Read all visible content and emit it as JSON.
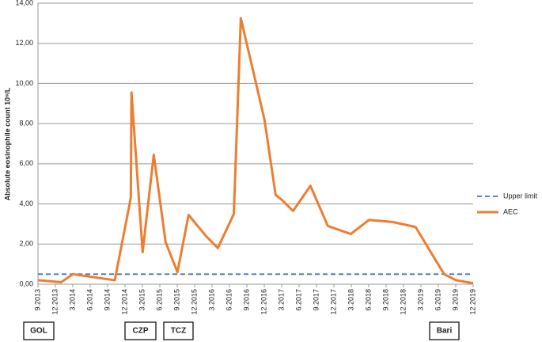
{
  "chart_data": {
    "type": "line",
    "y_label": "Absolute eosinophile count 10⁹/L",
    "ylim": [
      0,
      14
    ],
    "yticks": [
      {
        "value": 0,
        "label": "0,00"
      },
      {
        "value": 2,
        "label": "2,00"
      },
      {
        "value": 4,
        "label": "4,00"
      },
      {
        "value": 6,
        "label": "6,00"
      },
      {
        "value": 8,
        "label": "8,00"
      },
      {
        "value": 10,
        "label": "10,00"
      },
      {
        "value": 12,
        "label": "12,00"
      },
      {
        "value": 14,
        "label": "14,00"
      }
    ],
    "xlim": [
      2013.667,
      2019.917
    ],
    "xticks": [
      {
        "value": 2013.667,
        "label": "9.2013"
      },
      {
        "value": 2013.917,
        "label": "12.2013"
      },
      {
        "value": 2014.167,
        "label": "3.2014"
      },
      {
        "value": 2014.417,
        "label": "6.2014"
      },
      {
        "value": 2014.667,
        "label": "9.2014"
      },
      {
        "value": 2014.917,
        "label": "12.2014"
      },
      {
        "value": 2015.167,
        "label": "3.2015"
      },
      {
        "value": 2015.417,
        "label": "6.2015"
      },
      {
        "value": 2015.667,
        "label": "9.2015"
      },
      {
        "value": 2015.917,
        "label": "12.2015"
      },
      {
        "value": 2016.167,
        "label": "3.2016"
      },
      {
        "value": 2016.417,
        "label": "6.2016"
      },
      {
        "value": 2016.667,
        "label": "9.2016"
      },
      {
        "value": 2016.917,
        "label": "12.2016"
      },
      {
        "value": 2017.167,
        "label": "3.2017"
      },
      {
        "value": 2017.417,
        "label": "6.2017"
      },
      {
        "value": 2017.667,
        "label": "9.2017"
      },
      {
        "value": 2017.917,
        "label": "12.2017"
      },
      {
        "value": 2018.167,
        "label": "3.2018"
      },
      {
        "value": 2018.417,
        "label": "6.2018"
      },
      {
        "value": 2018.667,
        "label": "9.2018"
      },
      {
        "value": 2018.917,
        "label": "12.2018"
      },
      {
        "value": 2019.167,
        "label": "3.2019"
      },
      {
        "value": 2019.417,
        "label": "6.2019"
      },
      {
        "value": 2019.667,
        "label": "9.2019"
      },
      {
        "value": 2019.917,
        "label": "12.2019"
      }
    ],
    "grid": true,
    "series": [
      {
        "name": "Upper limit",
        "color": "#4472c4",
        "dashed": true,
        "x": [
          2013.667,
          2019.917
        ],
        "values": [
          0.5,
          0.5
        ]
      },
      {
        "name": "AEC",
        "color": "#ed7d31",
        "dashed": false,
        "x": [
          2013.667,
          2014.0,
          2014.167,
          2014.77,
          2015.0,
          2015.01,
          2015.17,
          2015.33,
          2015.5,
          2015.67,
          2015.83,
          2016.08,
          2016.25,
          2016.48,
          2016.58,
          2016.92,
          2017.08,
          2017.17,
          2017.33,
          2017.58,
          2017.83,
          2018.16,
          2018.42,
          2018.76,
          2019.09,
          2019.5,
          2019.67,
          2019.917
        ],
        "values": [
          0.2,
          0.1,
          0.5,
          0.2,
          4.3,
          9.55,
          1.6,
          6.45,
          2.1,
          0.6,
          3.45,
          2.4,
          1.8,
          3.5,
          13.25,
          8.2,
          4.45,
          4.2,
          3.65,
          4.9,
          2.9,
          2.5,
          3.2,
          3.1,
          2.85,
          0.5,
          0.2,
          0.05
        ]
      }
    ],
    "annotations": [
      "GOL",
      "CZP",
      "TCZ",
      "Bari"
    ]
  }
}
